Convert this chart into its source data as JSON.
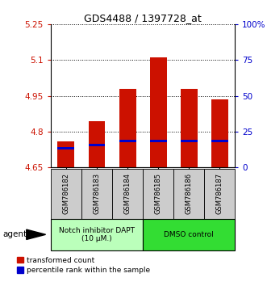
{
  "title": "GDS4488 / 1397728_at",
  "samples": [
    "GSM786182",
    "GSM786183",
    "GSM786184",
    "GSM786185",
    "GSM786186",
    "GSM786187"
  ],
  "bar_bottom": 4.65,
  "red_tops": [
    4.76,
    4.842,
    4.98,
    5.11,
    4.98,
    4.935
  ],
  "blue_values": [
    4.73,
    4.745,
    4.762,
    4.762,
    4.762,
    4.762
  ],
  "ylim": [
    4.65,
    5.25
  ],
  "yticks_left": [
    4.65,
    4.8,
    4.95,
    5.1,
    5.25
  ],
  "yticks_right_vals": [
    4.65,
    4.8,
    4.95,
    5.1,
    5.25
  ],
  "yticks_right_labels": [
    "0",
    "25",
    "50",
    "75",
    "100%"
  ],
  "bar_color_red": "#cc1100",
  "bar_color_blue": "#0000cc",
  "bar_width": 0.55,
  "groups": [
    {
      "label": "Notch inhibitor DAPT\n(10 μM.)",
      "samples": [
        0,
        1,
        2
      ],
      "color": "#bbffbb"
    },
    {
      "label": "DMSO control",
      "samples": [
        3,
        4,
        5
      ],
      "color": "#33dd33"
    }
  ],
  "left_color": "#cc1100",
  "right_color": "#0000cc",
  "agent_label": "agent",
  "legend_red_label": "transformed count",
  "legend_blue_label": "percentile rank within the sample",
  "bg_color": "#ffffff",
  "sample_box_color": "#cccccc",
  "title_fontsize": 9
}
